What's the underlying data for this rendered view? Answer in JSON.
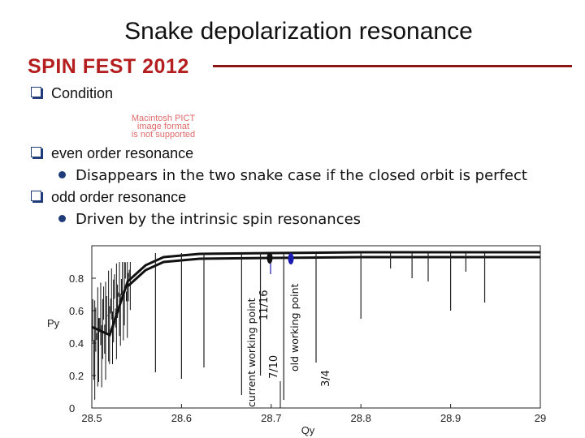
{
  "slide": {
    "title": "Snake depolarization resonance",
    "conference": "SPIN FEST 2012",
    "bullets": [
      {
        "text": "Condition"
      },
      {
        "text": "even order resonance",
        "sub": "Disappears in the two snake case if the closed orbit is perfect"
      },
      {
        "text": "odd order resonance",
        "sub": "Driven by the intrinsic spin resonances"
      }
    ],
    "pict_placeholder": [
      "Macintosh PICT",
      "image format",
      "is not supported"
    ]
  },
  "colors": {
    "accent": "#b41e1e",
    "rule": "#8a1616",
    "bullet": "#1f3b7a",
    "marker": "#1a1ab0"
  },
  "chart_data": {
    "type": "line",
    "xlabel": "Qy",
    "ylabel": "Py",
    "xlim": [
      28.5,
      29.0
    ],
    "ylim": [
      0,
      1
    ],
    "x_ticks": [
      "28.5",
      "28.6",
      "28.7",
      "28.8",
      "28.9",
      "29"
    ],
    "y_ticks": [
      "0",
      "0.2",
      "0.4",
      "0.6",
      "0.8"
    ],
    "series": [
      {
        "points": [
          [
            28.5,
            0.5
          ],
          [
            28.52,
            0.45
          ],
          [
            28.54,
            0.78
          ],
          [
            28.56,
            0.88
          ],
          [
            28.58,
            0.93
          ],
          [
            28.62,
            0.95
          ],
          [
            28.7,
            0.955
          ],
          [
            28.8,
            0.96
          ],
          [
            29.0,
            0.96
          ]
        ]
      }
    ],
    "resonance_dips": [
      {
        "x": 28.571,
        "y": 0.22
      },
      {
        "x": 28.6,
        "y": 0.18
      },
      {
        "x": 28.625,
        "y": 0.25
      },
      {
        "x": 28.667,
        "y": 0.08
      },
      {
        "x": 28.688,
        "y": 0.2
      },
      {
        "x": 28.714,
        "y": 0.05
      },
      {
        "x": 28.75,
        "y": 0.28
      },
      {
        "x": 28.8,
        "y": 0.55
      },
      {
        "x": 28.833,
        "y": 0.86
      },
      {
        "x": 28.857,
        "y": 0.8
      },
      {
        "x": 28.875,
        "y": 0.78
      },
      {
        "x": 28.9,
        "y": 0.6
      },
      {
        "x": 28.917,
        "y": 0.84
      },
      {
        "x": 28.938,
        "y": 0.65
      }
    ],
    "annotations": [
      {
        "text": "current working point",
        "x": 28.6875
      },
      {
        "text": "11/16",
        "x": 28.6875
      },
      {
        "text": "7/10",
        "x": 28.7
      },
      {
        "text": "old working point",
        "x": 28.73
      },
      {
        "text": "3/4",
        "x": 28.75
      }
    ],
    "markers": [
      {
        "name": "current working point",
        "x": 28.6875,
        "y": 0.96
      },
      {
        "name": "old working point",
        "x": 28.73,
        "y": 0.96
      }
    ]
  }
}
